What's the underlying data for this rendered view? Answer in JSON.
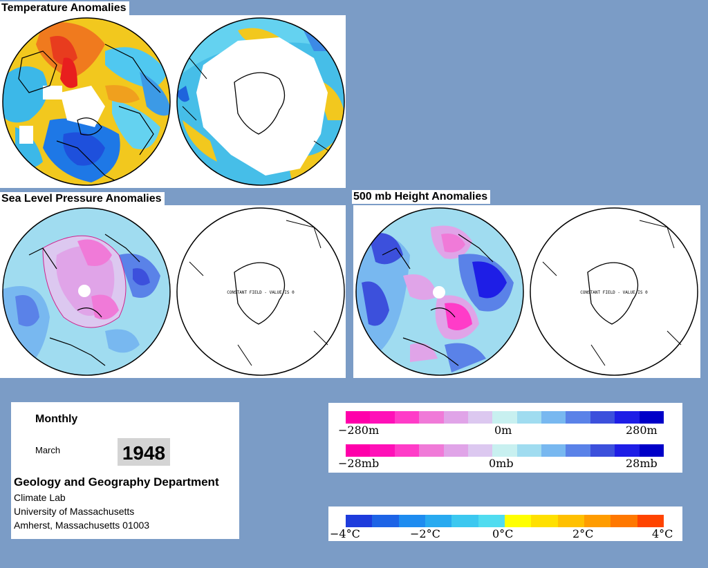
{
  "titles": {
    "temperature": "Temperature Anomalies",
    "slp": "Sea Level Pressure Anomalies",
    "height500": "500 mb Height Anomalies"
  },
  "map_annotations": {
    "constant_field": "CONSTANT FIELD - VALUE IS 0"
  },
  "info": {
    "frequency": "Monthly",
    "month": "March",
    "year": "1948",
    "department": "Geology and Geography Department",
    "lab": "Climate Lab",
    "university": "University of Massachusetts",
    "address": "Amherst, Massachusetts 01003"
  },
  "legend_height": {
    "labels": [
      "−280m",
      "0m",
      "280m"
    ],
    "colors": [
      "#ff00aa",
      "#ff10b8",
      "#ff3cc8",
      "#f07ad8",
      "#e0a4e8",
      "#dcc8f0",
      "#c8f0f0",
      "#a0dcf0",
      "#78b8f0",
      "#5a82e8",
      "#3c50dc",
      "#1e1ee6",
      "#0000c8"
    ]
  },
  "legend_pressure": {
    "labels": [
      "−28mb",
      "0mb",
      "28mb"
    ],
    "colors": [
      "#ff00aa",
      "#ff10b8",
      "#ff3cc8",
      "#f07ad8",
      "#e0a4e8",
      "#dcc8f0",
      "#c8f0f0",
      "#a0dcf0",
      "#78b8f0",
      "#5a82e8",
      "#3c50dc",
      "#1e1ee6",
      "#0000c8"
    ]
  },
  "legend_temperature": {
    "labels": [
      "−4°C",
      "−2°C",
      "0°C",
      "2°C",
      "4°C"
    ],
    "colors": [
      "#1e3cdc",
      "#1e64e6",
      "#1e8cf0",
      "#28aaf0",
      "#3cc8f0",
      "#50dcf0",
      "#ffff00",
      "#ffe000",
      "#ffc000",
      "#ff9c00",
      "#ff7800",
      "#ff4400"
    ]
  }
}
